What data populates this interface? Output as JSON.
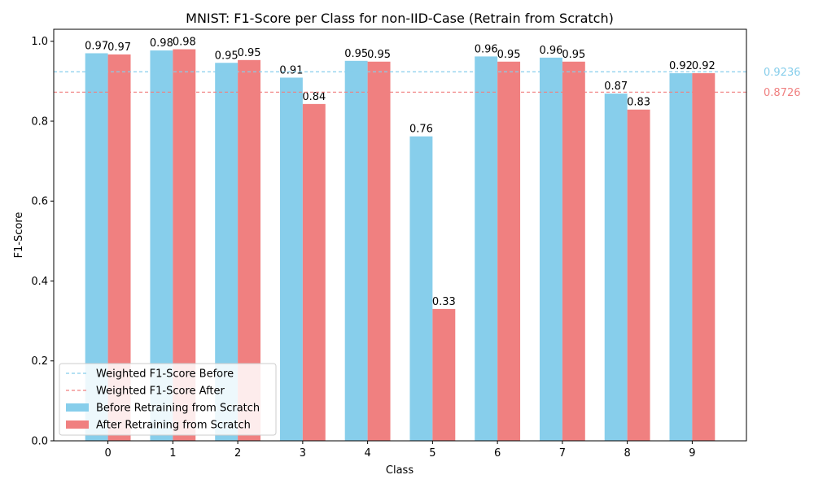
{
  "chart_data": {
    "type": "bar",
    "title": "MNIST: F1-Score per Class for non-IID-Case (Retrain from Scratch)",
    "xlabel": "Class",
    "ylabel": "F1-Score",
    "categories": [
      "0",
      "1",
      "2",
      "3",
      "4",
      "5",
      "6",
      "7",
      "8",
      "9"
    ],
    "ylim": [
      0,
      1.03
    ],
    "yticks": [
      0.0,
      0.2,
      0.4,
      0.6,
      0.8,
      1.0
    ],
    "ytick_labels": [
      "0.0",
      "0.2",
      "0.4",
      "0.6",
      "0.8",
      "1.0"
    ],
    "series": [
      {
        "name": "Before Retraining from Scratch",
        "color": "#87CEEB",
        "values": [
          0.97,
          0.977,
          0.946,
          0.909,
          0.951,
          0.762,
          0.962,
          0.959,
          0.869,
          0.92
        ],
        "labels": [
          "0.97",
          "0.98",
          "0.95",
          "0.91",
          "0.95",
          "0.76",
          "0.96",
          "0.96",
          "0.87",
          "0.92"
        ]
      },
      {
        "name": "After Retraining from Scratch",
        "color": "#F08080",
        "values": [
          0.967,
          0.98,
          0.953,
          0.843,
          0.949,
          0.33,
          0.949,
          0.949,
          0.829,
          0.92
        ],
        "labels": [
          "0.97",
          "0.98",
          "0.95",
          "0.84",
          "0.95",
          "0.33",
          "0.95",
          "0.95",
          "0.83",
          "0.92"
        ]
      }
    ],
    "reference_lines": [
      {
        "name": "Weighted F1-Score Before",
        "value": 0.9236,
        "label": "0.9236",
        "color": "#87CEEB",
        "style": "dashed"
      },
      {
        "name": "Weighted F1-Score After",
        "value": 0.8726,
        "label": "0.8726",
        "color": "#F08080",
        "style": "dashed"
      }
    ],
    "legend_position": "lower-left",
    "grid": false
  }
}
